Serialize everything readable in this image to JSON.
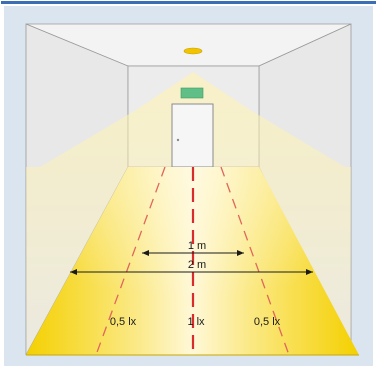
{
  "diagram": {
    "labels": {
      "dim_1m": "1  m",
      "dim_2m": "2  m",
      "lux_left": "0,5  lx",
      "lux_center": "1  lx",
      "lux_right": "0,5  lx"
    },
    "colors": {
      "frame_top_border": "#3a6fb5",
      "frame_background": "#dbe5ef",
      "wall": "#ececec",
      "wall_edge": "#9a9a9a",
      "floor_glow": "#f7dc39",
      "centerline": "#d92b2b",
      "emergency_sign": "#5fbf86"
    }
  }
}
